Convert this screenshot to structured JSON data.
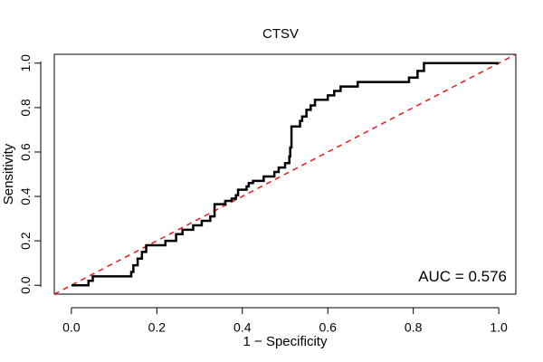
{
  "chart_data": {
    "type": "line",
    "title": "CTSV",
    "xlabel": "1 − Specificity",
    "ylabel": "Sensitivity",
    "xlim": [
      -0.04,
      1.04
    ],
    "ylim": [
      -0.04,
      1.04
    ],
    "xticks": [
      0.0,
      0.2,
      0.4,
      0.6,
      0.8,
      1.0
    ],
    "xtick_labels": [
      "0.0",
      "0.2",
      "0.4",
      "0.6",
      "0.8",
      "1.0"
    ],
    "yticks": [
      0.0,
      0.2,
      0.4,
      0.6,
      0.8,
      1.0
    ],
    "ytick_labels": [
      "0.0",
      "0.2",
      "0.4",
      "0.6",
      "0.8",
      "1.0"
    ],
    "grid": false,
    "annotation": "AUC = 0.576",
    "series": [
      {
        "name": "ROC curve",
        "color": "#000000",
        "style": "solid",
        "x": [
          0.0,
          0.04,
          0.04,
          0.05,
          0.05,
          0.14,
          0.14,
          0.145,
          0.145,
          0.155,
          0.155,
          0.165,
          0.165,
          0.175,
          0.175,
          0.22,
          0.22,
          0.245,
          0.245,
          0.26,
          0.26,
          0.285,
          0.285,
          0.305,
          0.305,
          0.325,
          0.325,
          0.335,
          0.335,
          0.36,
          0.36,
          0.375,
          0.375,
          0.385,
          0.385,
          0.39,
          0.39,
          0.41,
          0.41,
          0.415,
          0.415,
          0.425,
          0.425,
          0.45,
          0.45,
          0.475,
          0.475,
          0.485,
          0.485,
          0.5,
          0.5,
          0.51,
          0.51,
          0.512,
          0.512,
          0.515,
          0.515,
          0.535,
          0.535,
          0.54,
          0.54,
          0.55,
          0.55,
          0.56,
          0.56,
          0.57,
          0.57,
          0.6,
          0.6,
          0.615,
          0.615,
          0.63,
          0.63,
          0.67,
          0.67,
          0.79,
          0.79,
          0.81,
          0.81,
          0.825,
          0.825,
          1.0
        ],
        "y": [
          0.0,
          0.0,
          0.02,
          0.02,
          0.04,
          0.04,
          0.06,
          0.06,
          0.09,
          0.09,
          0.12,
          0.12,
          0.15,
          0.15,
          0.18,
          0.18,
          0.2,
          0.2,
          0.23,
          0.23,
          0.25,
          0.25,
          0.27,
          0.27,
          0.29,
          0.29,
          0.31,
          0.31,
          0.365,
          0.365,
          0.38,
          0.38,
          0.39,
          0.39,
          0.405,
          0.405,
          0.43,
          0.43,
          0.445,
          0.445,
          0.46,
          0.46,
          0.47,
          0.47,
          0.49,
          0.49,
          0.51,
          0.51,
          0.53,
          0.53,
          0.55,
          0.55,
          0.58,
          0.58,
          0.62,
          0.62,
          0.715,
          0.715,
          0.74,
          0.74,
          0.76,
          0.76,
          0.79,
          0.79,
          0.81,
          0.81,
          0.835,
          0.835,
          0.855,
          0.855,
          0.875,
          0.875,
          0.895,
          0.895,
          0.915,
          0.915,
          0.935,
          0.935,
          0.965,
          0.965,
          1.0,
          1.0
        ]
      },
      {
        "name": "Reference line",
        "color": "#e8191a",
        "style": "dashed",
        "x": [
          -0.04,
          1.04
        ],
        "y": [
          -0.04,
          1.04
        ]
      }
    ]
  }
}
